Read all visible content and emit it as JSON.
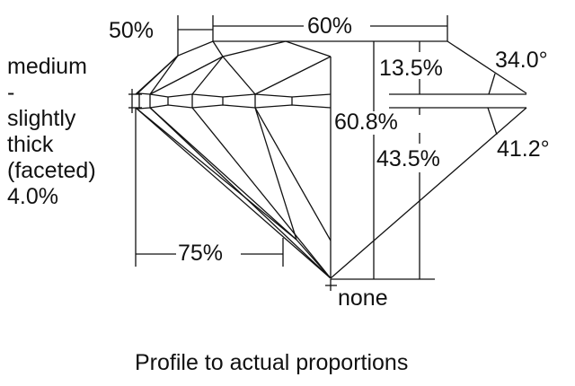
{
  "labels": {
    "crown_height_width": "50%",
    "table": "60%",
    "crown_height": "13.5%",
    "crown_angle": "34.0°",
    "total_depth": "60.8%",
    "pavilion_depth": "43.5%",
    "pavilion_angle": "41.2°",
    "lower_half": "75%",
    "culet": "none",
    "girdle": [
      "medium",
      "-",
      "slightly",
      "thick",
      "(faceted)",
      "4.0%"
    ]
  },
  "caption": "Profile to actual proportions",
  "colors": {
    "line": "#111111",
    "background": "#ffffff"
  }
}
